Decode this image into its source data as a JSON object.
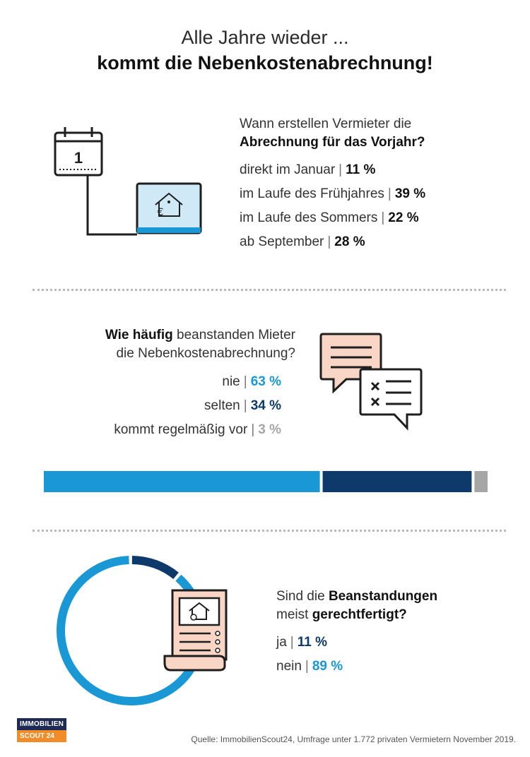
{
  "title": {
    "line1": "Alle Jahre wieder ...",
    "line2": "kommt die Nebenkostenabrechnung!"
  },
  "section1": {
    "question_line1": "Wann erstellen Vermieter die",
    "question_line2": "Abrechnung für das Vorjahr?",
    "calendar_number": "1",
    "rows": [
      {
        "label": "direkt im Januar",
        "value_text": "11 %"
      },
      {
        "label": "im Laufe des Frühjahres",
        "value_text": "39 %"
      },
      {
        "label": "im Laufe des Sommers",
        "value_text": "22 %"
      },
      {
        "label": "ab September",
        "value_text": "28 %"
      }
    ],
    "icons": [
      "calendar-icon",
      "laptop-house-euro-icon"
    ]
  },
  "section2": {
    "question_bold": "Wie häufig",
    "question_rest": " beanstanden Mieter",
    "question_line2": "die Nebenkostenabrechnung?",
    "rows": [
      {
        "label": "nie",
        "value_text": "63 %",
        "color": "#1a97d5"
      },
      {
        "label": "selten",
        "value_text": "34 %",
        "color": "#0d3a6b"
      },
      {
        "label": "kommt regelmäßig vor",
        "value_text": "3 %",
        "color": "#a6a6a6"
      }
    ],
    "icons": [
      "chat-bubbles-icon"
    ]
  },
  "section3": {
    "q1_plain": "Sind die ",
    "q1_bold": "Beanstandungen",
    "q2_plain": "meist ",
    "q2_bold": "gerechtfertigt?",
    "rows": [
      {
        "label": "ja",
        "value_text": "11 %",
        "color": "#0d3a6b"
      },
      {
        "label": "nein",
        "value_text": "89 %",
        "color": "#1a97d5"
      }
    ],
    "icons": [
      "document-checklist-icon"
    ]
  },
  "chart_data": [
    {
      "type": "bar",
      "orientation": "stacked-horizontal",
      "categories": [
        "nie",
        "selten",
        "kommt regelmäßig vor"
      ],
      "values": [
        63,
        34,
        3
      ],
      "colors": [
        "#1a97d5",
        "#0d3a6b",
        "#a6a6a6"
      ]
    },
    {
      "type": "pie",
      "style": "donut",
      "categories": [
        "ja",
        "nein"
      ],
      "values": [
        11,
        89
      ],
      "colors": [
        "#0d3a6b",
        "#1a97d5"
      ]
    }
  ],
  "logo": {
    "top": "IMMOBILIEN",
    "bottom": "SCOUT 24"
  },
  "source": "Quelle: ImmobilienScout24, Umfrage unter 1.772 privaten Vermietern November 2019."
}
